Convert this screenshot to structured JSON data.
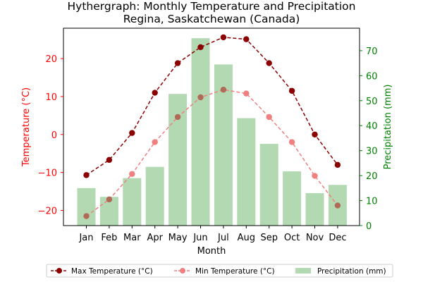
{
  "chart_data": {
    "type": "bar",
    "title_line1": "Hythergraph: Monthly Temperature and Precipitation",
    "title_line2": "Regina, Saskatchewan (Canada)",
    "xlabel": "Month",
    "ylabel_left": "Temperature (°C)",
    "ylabel_right": "Precipitation (mm)",
    "categories": [
      "Jan",
      "Feb",
      "Mar",
      "Apr",
      "May",
      "Jun",
      "Jul",
      "Aug",
      "Sep",
      "Oct",
      "Nov",
      "Dec"
    ],
    "ylim_left": [
      -24,
      28
    ],
    "ylim_right": [
      0,
      79
    ],
    "yticks_left": [
      -20,
      -10,
      0,
      10,
      20
    ],
    "yticks_right": [
      0,
      10,
      20,
      30,
      40,
      50,
      60,
      70
    ],
    "grid": false,
    "legend_position": "bottom",
    "series": [
      {
        "name": "Max Temperature (°C)",
        "kind": "line",
        "axis": "left",
        "color": "#8b0000",
        "style": "dashed",
        "values": [
          -10.7,
          -6.7,
          0.4,
          11.0,
          18.8,
          23.0,
          25.6,
          25.1,
          18.8,
          11.5,
          0.0,
          -8.0
        ]
      },
      {
        "name": "Min Temperature (°C)",
        "kind": "line",
        "axis": "left",
        "color": "#f08080",
        "style": "dashed",
        "values": [
          -21.5,
          -17.1,
          -10.4,
          -2.0,
          4.6,
          9.8,
          11.8,
          10.8,
          4.6,
          -2.0,
          -10.9,
          -18.7
        ]
      },
      {
        "name": "Precipitation (mm)",
        "kind": "bar",
        "axis": "right",
        "color": "#b2d9b2",
        "values": [
          15.0,
          11.5,
          19.0,
          23.5,
          52.7,
          75.0,
          64.5,
          43.0,
          32.7,
          21.7,
          13.0,
          16.3
        ]
      }
    ],
    "colors": {
      "left_axis": "#ff0000",
      "right_axis": "#008000",
      "max_marker": "#8b0000",
      "min_marker": "#f08080",
      "min_marker_overlap": "#b06a55"
    }
  }
}
